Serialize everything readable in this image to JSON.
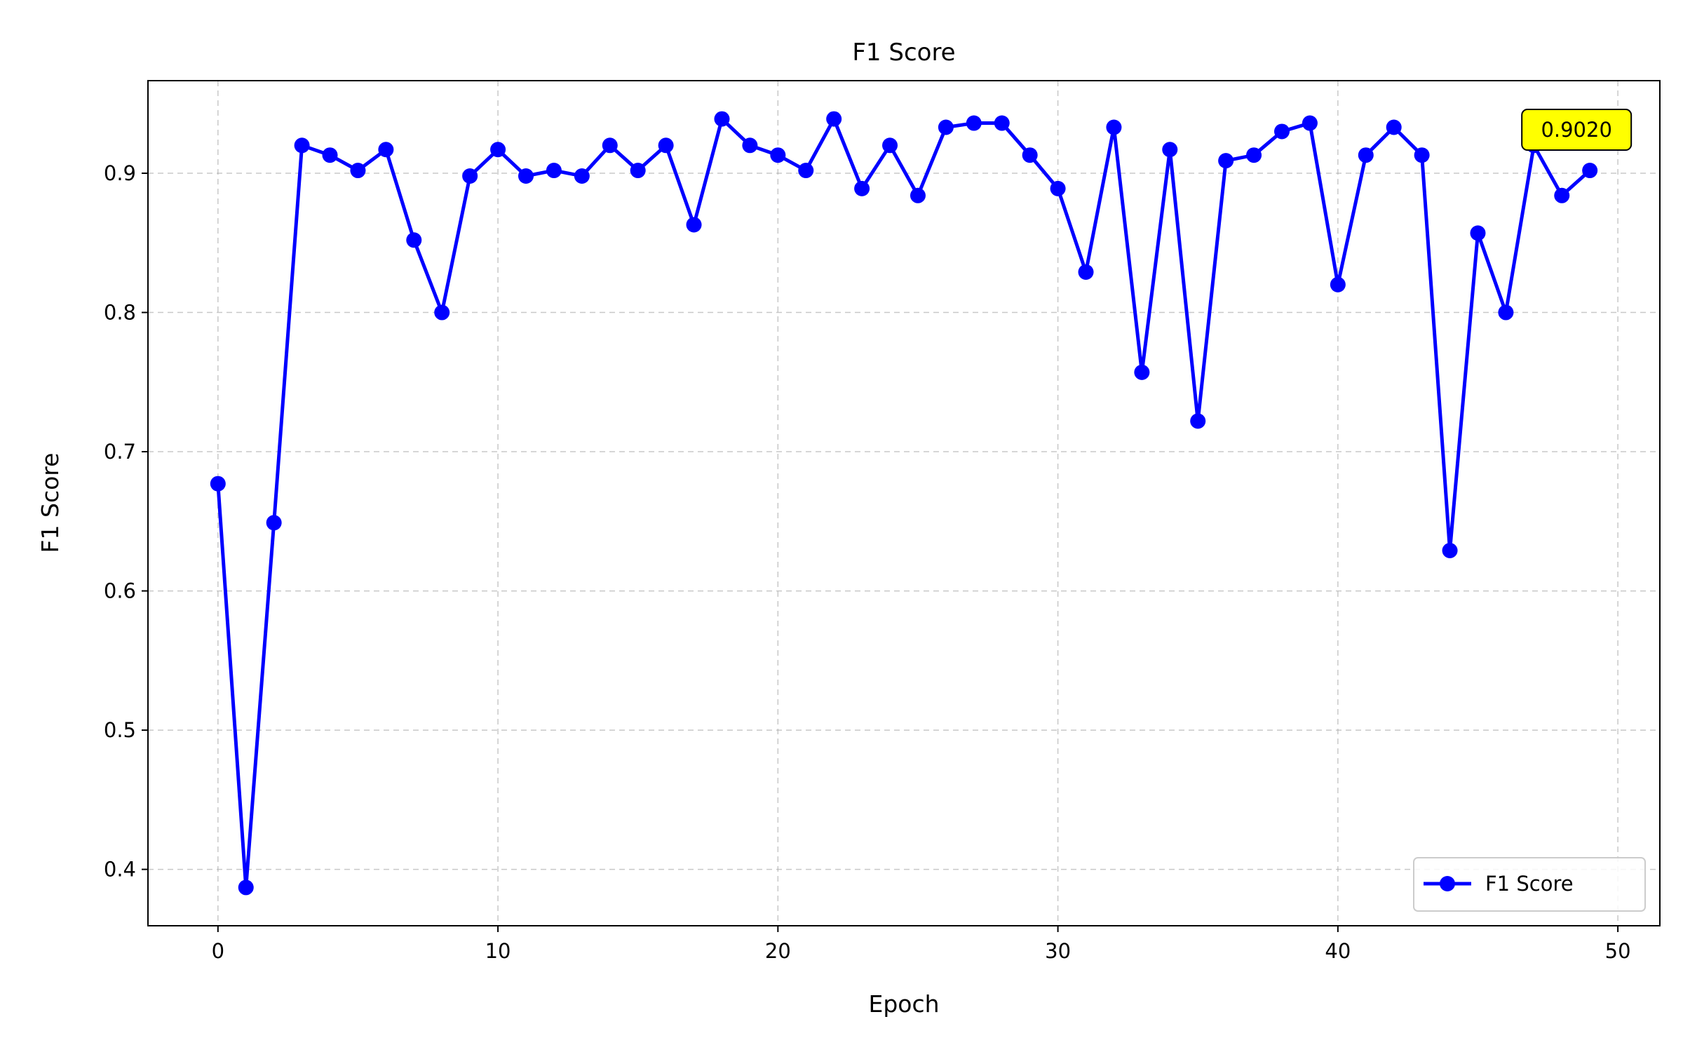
{
  "chart_data": {
    "type": "line",
    "title": "F1 Score",
    "xlabel": "Epoch",
    "ylabel": "F1 Score",
    "xlim": [
      -2.5,
      51.5
    ],
    "ylim": [
      0.3595,
      0.9665
    ],
    "xticks": [
      0,
      10,
      20,
      30,
      40,
      50
    ],
    "yticks": [
      0.4,
      0.5,
      0.6,
      0.7,
      0.8,
      0.9
    ],
    "xtick_labels": [
      "0",
      "10",
      "20",
      "30",
      "40",
      "50"
    ],
    "ytick_labels": [
      "0.4",
      "0.5",
      "0.6",
      "0.7",
      "0.8",
      "0.9"
    ],
    "grid": true,
    "legend_position": "bottom-right",
    "series": [
      {
        "name": "F1 Score",
        "color": "#0000ff",
        "marker": "circle",
        "x": [
          0,
          1,
          2,
          3,
          4,
          5,
          6,
          7,
          8,
          9,
          10,
          11,
          12,
          13,
          14,
          15,
          16,
          17,
          18,
          19,
          20,
          21,
          22,
          23,
          24,
          25,
          26,
          27,
          28,
          29,
          30,
          31,
          32,
          33,
          34,
          35,
          36,
          37,
          38,
          39,
          40,
          41,
          42,
          43,
          44,
          45,
          46,
          47,
          48,
          49
        ],
        "values": [
          0.677,
          0.387,
          0.649,
          0.92,
          0.913,
          0.902,
          0.917,
          0.852,
          0.8,
          0.898,
          0.917,
          0.898,
          0.902,
          0.898,
          0.92,
          0.902,
          0.92,
          0.863,
          0.939,
          0.92,
          0.913,
          0.902,
          0.939,
          0.889,
          0.92,
          0.884,
          0.933,
          0.936,
          0.936,
          0.913,
          0.889,
          0.829,
          0.933,
          0.757,
          0.917,
          0.722,
          0.909,
          0.913,
          0.93,
          0.936,
          0.82,
          0.913,
          0.933,
          0.913,
          0.629,
          0.857,
          0.8,
          0.92,
          0.884,
          0.902
        ]
      }
    ],
    "annotations": [
      {
        "text": "0.9020",
        "x": 49,
        "y": 0.902,
        "background": "#ffff00"
      }
    ]
  }
}
